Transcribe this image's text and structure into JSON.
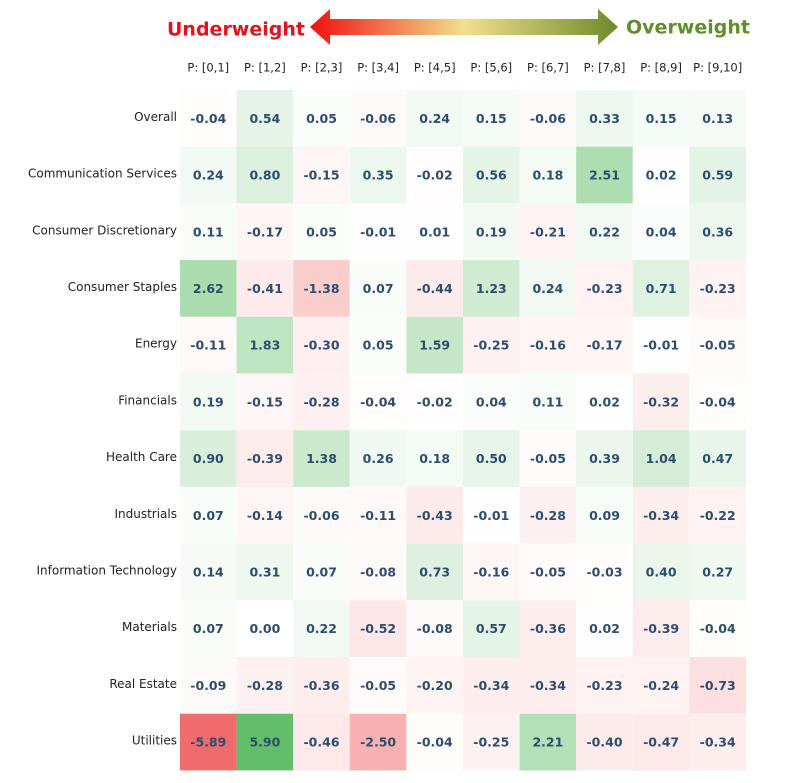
{
  "chart_data": {
    "type": "heatmap",
    "legend_low": "Underweight",
    "legend_high": "Overweight",
    "low_color": "#f06b6b",
    "high_color": "#63be6b",
    "mid_color": "#ffffff",
    "low_text_color": "#e8101a",
    "high_text_color": "#5f8f2a",
    "categories": [
      "P: [0,1]",
      "P: [1,2]",
      "P: [2,3]",
      "P: [3,4]",
      "P: [4,5]",
      "P: [5,6]",
      "P: [6,7]",
      "P: [7,8]",
      "P: [8,9]",
      "P: [9,10]"
    ],
    "rows": [
      "Overall",
      "Communication Services",
      "Consumer Discretionary",
      "Consumer Staples",
      "Energy",
      "Financials",
      "Health Care",
      "Industrials",
      "Information Technology",
      "Materials",
      "Real Estate",
      "Utilities"
    ],
    "values": [
      [
        -0.04,
        0.54,
        0.05,
        -0.06,
        0.24,
        0.15,
        -0.06,
        0.33,
        0.15,
        0.13
      ],
      [
        0.24,
        0.8,
        -0.15,
        0.35,
        -0.02,
        0.56,
        0.18,
        2.51,
        0.02,
        0.59
      ],
      [
        0.11,
        -0.17,
        0.05,
        -0.01,
        0.01,
        0.19,
        -0.21,
        0.22,
        0.04,
        0.36
      ],
      [
        2.62,
        -0.41,
        -1.38,
        0.07,
        -0.44,
        1.23,
        0.24,
        -0.23,
        0.71,
        -0.23
      ],
      [
        -0.11,
        1.83,
        -0.3,
        0.05,
        1.59,
        -0.25,
        -0.16,
        -0.17,
        -0.01,
        -0.05
      ],
      [
        0.19,
        -0.15,
        -0.28,
        -0.04,
        -0.02,
        0.04,
        0.11,
        0.02,
        -0.32,
        -0.04
      ],
      [
        0.9,
        -0.39,
        1.38,
        0.26,
        0.18,
        0.5,
        -0.05,
        0.39,
        1.04,
        0.47
      ],
      [
        0.07,
        -0.14,
        -0.06,
        -0.11,
        -0.43,
        -0.01,
        -0.28,
        0.09,
        -0.34,
        -0.22
      ],
      [
        0.14,
        0.31,
        0.07,
        -0.08,
        0.73,
        -0.16,
        -0.05,
        -0.03,
        0.4,
        0.27
      ],
      [
        0.07,
        0.0,
        0.22,
        -0.52,
        -0.08,
        0.57,
        -0.36,
        0.02,
        -0.39,
        -0.04
      ],
      [
        -0.09,
        -0.28,
        -0.36,
        -0.05,
        -0.2,
        -0.34,
        -0.34,
        -0.23,
        -0.24,
        -0.73
      ],
      [
        -5.89,
        5.9,
        -0.46,
        -2.5,
        -0.04,
        -0.25,
        2.21,
        -0.4,
        -0.47,
        -0.34
      ]
    ],
    "value_labels": [
      [
        "-0.04",
        "0.54",
        "0.05",
        "-0.06",
        "0.24",
        "0.15",
        "-0.06",
        "0.33",
        "0.15",
        "0.13"
      ],
      [
        "0.24",
        "0.80",
        "-0.15",
        "0.35",
        "-0.02",
        "0.56",
        "0.18",
        "2.51",
        "0.02",
        "0.59"
      ],
      [
        "0.11",
        "-0.17",
        "0.05",
        "-0.01",
        "0.01",
        "0.19",
        "-0.21",
        "0.22",
        "0.04",
        "0.36"
      ],
      [
        "2.62",
        "-0.41",
        "-1.38",
        "0.07",
        "-0.44",
        "1.23",
        "0.24",
        "-0.23",
        "0.71",
        "-0.23"
      ],
      [
        "-0.11",
        "1.83",
        "-0.30",
        "0.05",
        "1.59",
        "-0.25",
        "-0.16",
        "-0.17",
        "-0.01",
        "-0.05"
      ],
      [
        "0.19",
        "-0.15",
        "-0.28",
        "-0.04",
        "-0.02",
        "0.04",
        "0.11",
        "0.02",
        "-0.32",
        "-0.04"
      ],
      [
        "0.90",
        "-0.39",
        "1.38",
        "0.26",
        "0.18",
        "0.50",
        "-0.05",
        "0.39",
        "1.04",
        "0.47"
      ],
      [
        "0.07",
        "-0.14",
        "-0.06",
        "-0.11",
        "-0.43",
        "-0.01",
        "-0.28",
        "0.09",
        "-0.34",
        "-0.22"
      ],
      [
        "0.14",
        "0.31",
        "0.07",
        "-0.08",
        "0.73",
        "-0.16",
        "-0.05",
        "-0.03",
        "0.40",
        "0.27"
      ],
      [
        "0.07",
        "0.00",
        "0.22",
        "-0.52",
        "-0.08",
        "0.57",
        "-0.36",
        "0.02",
        "-0.39",
        "-0.04"
      ],
      [
        "-0.09",
        "-0.28",
        "-0.36",
        "-0.05",
        "-0.20",
        "-0.34",
        "-0.34",
        "-0.23",
        "-0.24",
        "-0.73"
      ],
      [
        "-5.89",
        "5.90",
        "-0.46",
        "-2.50",
        "-0.04",
        "-0.25",
        "2.21",
        "-0.40",
        "-0.47",
        "-0.34"
      ]
    ]
  }
}
